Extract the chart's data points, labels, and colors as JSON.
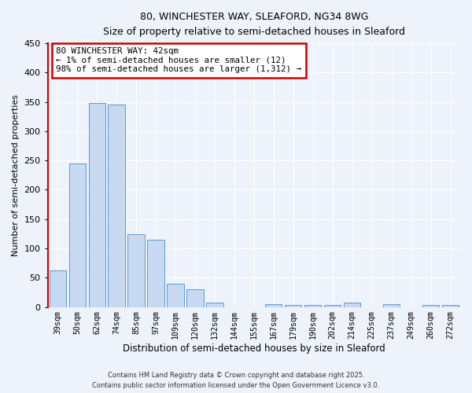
{
  "title_line1": "80, WINCHESTER WAY, SLEAFORD, NG34 8WG",
  "title_line2": "Size of property relative to semi-detached houses in Sleaford",
  "xlabel": "Distribution of semi-detached houses by size in Sleaford",
  "ylabel": "Number of semi-detached properties",
  "categories": [
    "39sqm",
    "50sqm",
    "62sqm",
    "74sqm",
    "85sqm",
    "97sqm",
    "109sqm",
    "120sqm",
    "132sqm",
    "144sqm",
    "155sqm",
    "167sqm",
    "179sqm",
    "190sqm",
    "202sqm",
    "214sqm",
    "225sqm",
    "237sqm",
    "249sqm",
    "260sqm",
    "272sqm"
  ],
  "values": [
    62,
    245,
    348,
    345,
    124,
    115,
    40,
    30,
    8,
    0,
    0,
    5,
    3,
    3,
    3,
    8,
    0,
    5,
    0,
    3,
    3
  ],
  "bar_color": "#c6d9f0",
  "bar_edge_color": "#5b9bd5",
  "highlight_line_color": "#cc0000",
  "annotation_title": "80 WINCHESTER WAY: 42sqm",
  "annotation_line1": "← 1% of semi-detached houses are smaller (12)",
  "annotation_line2": "98% of semi-detached houses are larger (1,312) →",
  "annotation_box_color": "#cc0000",
  "ylim": [
    0,
    450
  ],
  "yticks": [
    0,
    50,
    100,
    150,
    200,
    250,
    300,
    350,
    400,
    450
  ],
  "footer_line1": "Contains HM Land Registry data © Crown copyright and database right 2025.",
  "footer_line2": "Contains public sector information licensed under the Open Government Licence v3.0.",
  "bg_color": "#eef2fb",
  "plot_bg_color": "#eef2fb"
}
